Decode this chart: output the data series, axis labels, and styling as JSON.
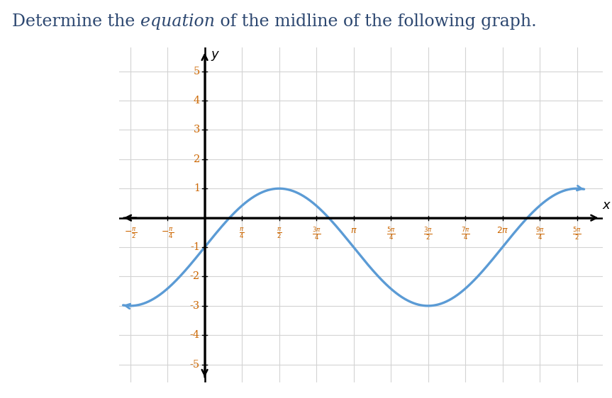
{
  "title_color": "#2c4770",
  "title_fontsize": 17,
  "xlim": [
    -1.8,
    8.4
  ],
  "ylim": [
    -5.6,
    5.8
  ],
  "yticks": [
    -5,
    -4,
    -3,
    -2,
    -1,
    1,
    2,
    3,
    4,
    5
  ],
  "xtick_labels": [
    "-\\frac{\\pi}{2}",
    "-\\frac{\\pi}{4}",
    "\\frac{\\pi}{4}",
    "\\frac{\\pi}{2}",
    "\\frac{3\\pi}{4}",
    "\\pi",
    "\\frac{5\\pi}{4}",
    "\\frac{3\\pi}{2}",
    "\\frac{7\\pi}{4}",
    "2\\pi",
    "\\frac{9\\pi}{4}",
    "\\frac{5\\pi}{2}"
  ],
  "xtick_values": [
    -1.5707963,
    -0.7853982,
    0.7853982,
    1.5707963,
    2.3561945,
    3.1415927,
    3.9269908,
    4.712389,
    5.497787,
    6.2831853,
    7.0685835,
    7.8539816
  ],
  "curve_color": "#5b9bd5",
  "curve_lw": 2.4,
  "amplitude": 2,
  "midline": -1,
  "grid_color": "#d3d3d3",
  "tick_color": "#cc6600",
  "background_color": "#ffffff",
  "grid_xticks": [
    -1.5707963,
    -0.7853982,
    0.7853982,
    1.5707963,
    2.3561945,
    3.1415927,
    3.9269908,
    4.712389,
    5.497787,
    6.2831853,
    7.0685835,
    7.8539816
  ],
  "grid_yticks": [
    -5,
    -4,
    -3,
    -2,
    -1,
    0,
    1,
    2,
    3,
    4,
    5
  ]
}
